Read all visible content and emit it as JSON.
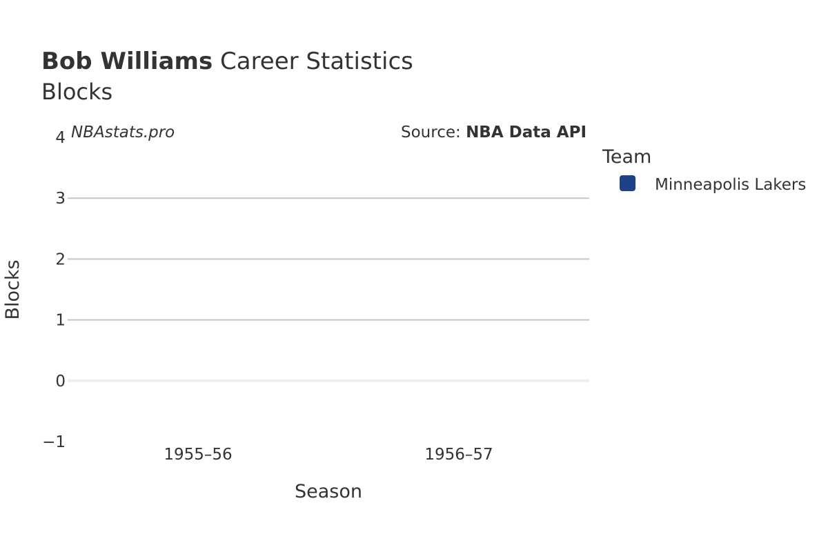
{
  "title": {
    "player": "Bob Williams",
    "rest": " Career Statistics",
    "subtitle": "Blocks"
  },
  "watermark": "NBAstats.pro",
  "source": {
    "prefix": "Source: ",
    "name": "NBA Data API"
  },
  "legend": {
    "title": "Team",
    "items": [
      {
        "label": "Minneapolis Lakers",
        "color": "#1d428a"
      }
    ]
  },
  "chart_data": {
    "type": "bar",
    "title": "Bob Williams Career Statistics",
    "subtitle": "Blocks",
    "xlabel": "Season",
    "ylabel": "Blocks",
    "categories": [
      "1955–56",
      "1956–57"
    ],
    "series": [
      {
        "name": "Minneapolis Lakers",
        "color": "#1d428a",
        "values": [
          0,
          0
        ]
      }
    ],
    "ylim": [
      -1,
      4
    ],
    "yticks": [
      -1,
      0,
      1,
      2,
      3,
      4
    ],
    "ytick_labels": [
      "−1",
      "0",
      "1",
      "2",
      "3",
      "4"
    ],
    "grid": true,
    "legend_position": "right"
  }
}
